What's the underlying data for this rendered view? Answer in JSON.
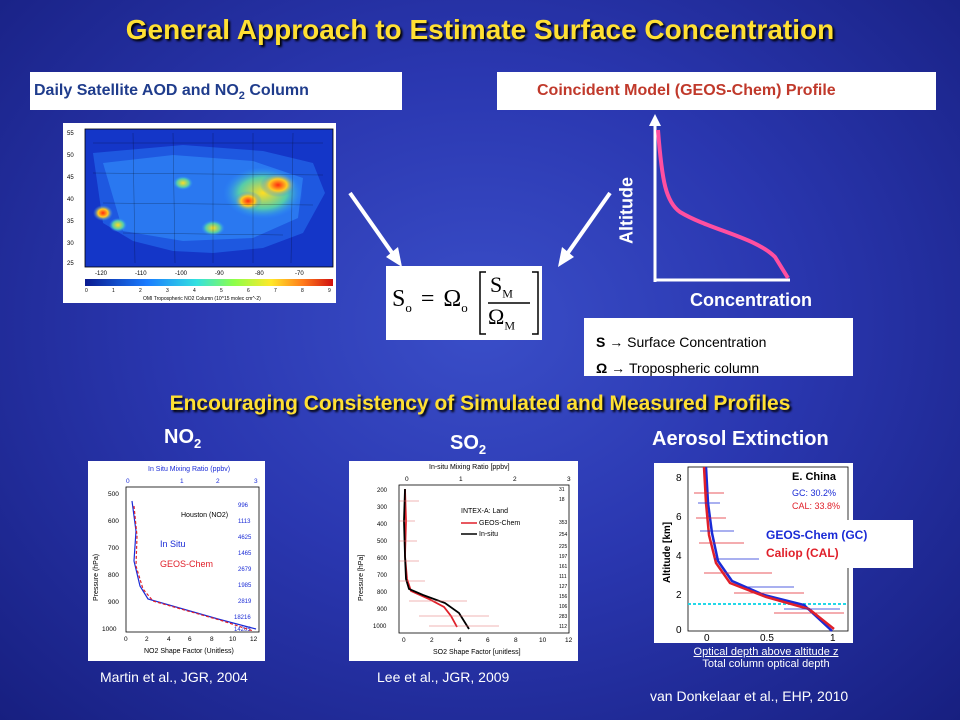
{
  "title": "General Approach to Estimate Surface Concentration",
  "left_header": {
    "text": "Daily Satellite AOD and NO",
    "sub": "2",
    "tail": " Column"
  },
  "right_header": "Coincident Model (GEOS-Chem) Profile",
  "map": {
    "lat_ticks": [
      "55",
      "50",
      "45",
      "40",
      "35",
      "30",
      "25"
    ],
    "lon_ticks": [
      "-120",
      "-110",
      "-100",
      "-90",
      "-80",
      "-70"
    ],
    "scale_ticks": [
      "0",
      "1",
      "2",
      "3",
      "4",
      "5",
      "6",
      "7",
      "8",
      "9"
    ],
    "scale_label": "OMI Tropospheric NO2 Column (10^15 molec cm^-2)"
  },
  "formula": {
    "lhs": "S",
    "lhs_sub": "o",
    "omega": "Ω",
    "omega_sub": "o",
    "num": "S",
    "num_sub": "M",
    "den": "Ω",
    "den_sub": "M"
  },
  "profile": {
    "y_label": "Altitude",
    "x_label": "Concentration"
  },
  "legend": {
    "s_symbol": "S",
    "s_text": " → Surface Concentration",
    "o_symbol": "Ω",
    "o_text": " → Tropospheric column"
  },
  "subtitle": "Encouraging Consistency of Simulated and Measured Profiles",
  "no2": {
    "label": "NO",
    "label_sub": "2",
    "top_axis": "In Situ Mixing Ratio (ppbv)",
    "top_ticks": [
      "0",
      "1",
      "2",
      "3"
    ],
    "y_label": "Pressure (hPa)",
    "y_ticks": [
      "500",
      "600",
      "700",
      "800",
      "900",
      "1000"
    ],
    "x_ticks": [
      "0",
      "2",
      "4",
      "6",
      "8",
      "10",
      "12"
    ],
    "x_label": "NO2 Shape Factor (Unitless)",
    "legend_title": "Houston (NO2)",
    "in_situ": "In Situ",
    "geos": "GEOS-Chem",
    "counts": [
      "996",
      "1113",
      "4625",
      "1465",
      "2679",
      "1985",
      "2819",
      "18216",
      "14205"
    ],
    "cite": "Martin et al., JGR, 2004"
  },
  "so2": {
    "label": "SO",
    "label_sub": "2",
    "top_axis": "In-situ Mixing Ratio [ppbv]",
    "top_ticks": [
      "0",
      "1",
      "2",
      "3"
    ],
    "y_label": "Pressure [hPa]",
    "y_ticks": [
      "200",
      "300",
      "400",
      "500",
      "600",
      "700",
      "800",
      "900",
      "1000"
    ],
    "x_ticks": [
      "0",
      "2",
      "4",
      "6",
      "8",
      "10",
      "12"
    ],
    "x_label": "SO2 Shape Factor [unitless]",
    "legend_title": "INTEX-A: Land",
    "geos": "GEOS-Chem",
    "insitu": "In-situ",
    "counts": [
      "31",
      "18",
      "353",
      "254",
      "225",
      "197",
      "161",
      "111",
      "127",
      "156",
      "106",
      "283",
      "112"
    ],
    "cite": "Lee et al., JGR, 2009"
  },
  "aerosol": {
    "label": "Aerosol Extinction",
    "y_label": "Altitude [km]",
    "y_ticks": [
      "8",
      "6",
      "4",
      "2",
      "0"
    ],
    "x_ticks": [
      "0",
      "0.5",
      "1"
    ],
    "region": "E. China",
    "gc": "GC: 30.2%",
    "cal": "CAL: 33.8%",
    "legend_gc": "GEOS-Chem (GC)",
    "legend_cal": "Caliop (CAL)",
    "frac_num": "Optical depth above altitude z",
    "frac_den": "Total column optical depth",
    "cite": "van Donkelaar et al., EHP, 2010",
    "colors": {
      "gc": "#1a2bd6",
      "cal": "#e0202a"
    }
  }
}
